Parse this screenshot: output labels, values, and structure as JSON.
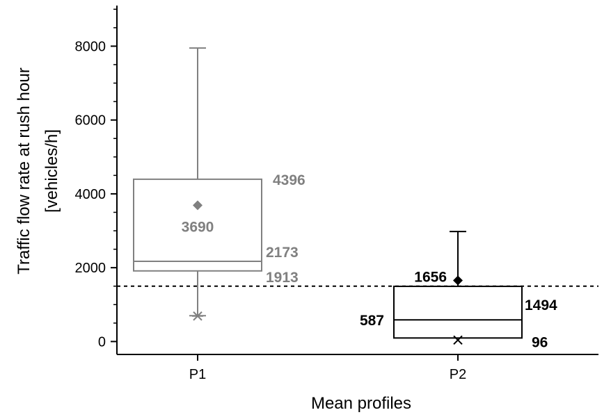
{
  "chart_data": {
    "type": "box",
    "xlabel": "Mean profiles",
    "ylabel_line1": "Traffic flow rate at rush hour",
    "ylabel_line2": "[vehicles/h]",
    "ylim": [
      -350,
      9100
    ],
    "yticks": [
      0,
      2000,
      4000,
      6000,
      8000
    ],
    "ytick_labels": [
      "0",
      "2000",
      "4000",
      "6000",
      "8000"
    ],
    "categories": [
      "P1",
      "P2"
    ],
    "threshold": 1500,
    "boxes": [
      {
        "category": "P1",
        "color": "#808080",
        "whisker_low": 700,
        "q1": 1913,
        "median": 2173,
        "q3": 4396,
        "whisker_high": 7950,
        "mean": 3690,
        "min_marker": 690,
        "labels": {
          "q3": "4396",
          "mean": "3690",
          "median": "2173",
          "q1": "1913"
        }
      },
      {
        "category": "P2",
        "color": "#000000",
        "whisker_low": 96,
        "q1": 96,
        "median": 587,
        "q3": 1494,
        "whisker_high": 2980,
        "mean": 1656,
        "min_marker": 40,
        "labels": {
          "q3": "1494",
          "mean": "1656",
          "median": "587",
          "q1": "96"
        }
      }
    ]
  }
}
